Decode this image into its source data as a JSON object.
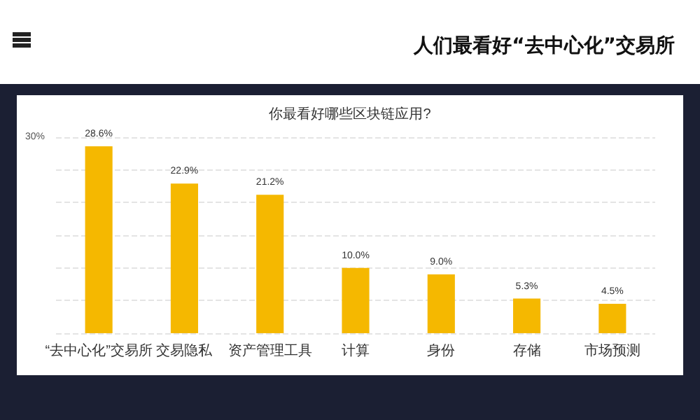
{
  "chart_data": {
    "type": "bar",
    "title": "人们最看好“去中心化”交易所",
    "subtitle": "你最看好哪些区块链应用?",
    "categories": [
      "“去中心化”交易所",
      "交易隐私",
      "资产管理工具",
      "计算",
      "身份",
      "存储",
      "市场预测"
    ],
    "values": [
      28.6,
      22.9,
      21.2,
      10.0,
      9.0,
      5.3,
      4.5
    ],
    "value_labels": [
      "28.6%",
      "22.9%",
      "21.2%",
      "10.0%",
      "9.0%",
      "5.3%",
      "4.5%"
    ],
    "color": "#f5b800",
    "ylim": [
      0,
      30
    ],
    "yticks": [
      {
        "value": 0,
        "label": null
      },
      {
        "value": 5,
        "label": null
      },
      {
        "value": 10,
        "label": null
      },
      {
        "value": 15,
        "label": null
      },
      {
        "value": 20,
        "label": null
      },
      {
        "value": 25,
        "label": null
      },
      {
        "value": 30,
        "label": "30%"
      }
    ],
    "grid": "y"
  }
}
